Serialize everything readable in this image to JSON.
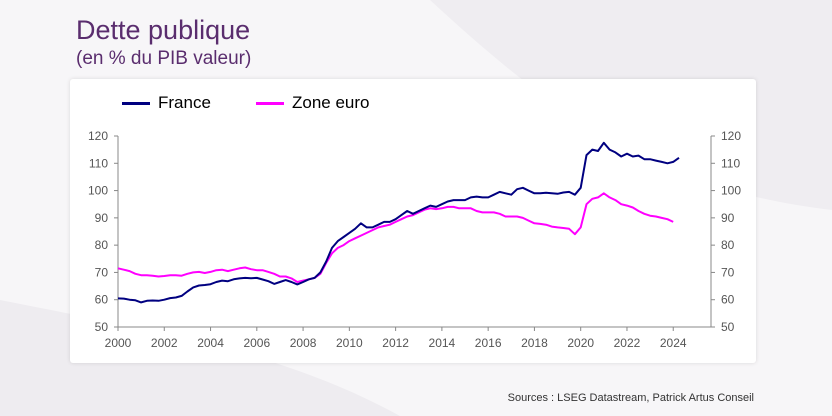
{
  "title": "Dette publique",
  "subtitle": "(en % du PIB valeur)",
  "source": "Sources : LSEG Datastream, Patrick Artus Conseil",
  "chart_data": {
    "type": "line",
    "xlim": [
      2000,
      2025.2
    ],
    "ylim": [
      50,
      120
    ],
    "y_ticks": [
      50,
      60,
      70,
      80,
      90,
      100,
      110,
      120
    ],
    "x_ticks": [
      2000,
      2002,
      2004,
      2006,
      2008,
      2010,
      2012,
      2014,
      2016,
      2018,
      2020,
      2022,
      2024
    ],
    "y_tick_labels": [
      "50",
      "60",
      "70",
      "80",
      "90",
      "100",
      "110",
      "120"
    ],
    "x_tick_labels": [
      "2000",
      "2002",
      "2004",
      "2006",
      "2008",
      "2010",
      "2012",
      "2014",
      "2016",
      "2018",
      "2020",
      "2022",
      "2024"
    ],
    "legend_position": "top-left",
    "grid": false,
    "series": [
      {
        "name": "France",
        "color": "#000080",
        "points": [
          [
            2000.0,
            60.5
          ],
          [
            2000.25,
            60.4
          ],
          [
            2000.5,
            60.0
          ],
          [
            2000.75,
            59.8
          ],
          [
            2001.0,
            59.0
          ],
          [
            2001.25,
            59.6
          ],
          [
            2001.5,
            59.7
          ],
          [
            2001.75,
            59.6
          ],
          [
            2002.0,
            60.0
          ],
          [
            2002.25,
            60.6
          ],
          [
            2002.5,
            60.8
          ],
          [
            2002.75,
            61.4
          ],
          [
            2003.0,
            63.0
          ],
          [
            2003.25,
            64.5
          ],
          [
            2003.5,
            65.2
          ],
          [
            2003.75,
            65.4
          ],
          [
            2004.0,
            65.7
          ],
          [
            2004.25,
            66.5
          ],
          [
            2004.5,
            67.0
          ],
          [
            2004.75,
            66.8
          ],
          [
            2005.0,
            67.5
          ],
          [
            2005.25,
            67.8
          ],
          [
            2005.5,
            68.0
          ],
          [
            2005.75,
            67.9
          ],
          [
            2006.0,
            68.0
          ],
          [
            2006.25,
            67.4
          ],
          [
            2006.5,
            66.8
          ],
          [
            2006.75,
            65.8
          ],
          [
            2007.0,
            66.5
          ],
          [
            2007.25,
            67.2
          ],
          [
            2007.5,
            66.5
          ],
          [
            2007.75,
            65.6
          ],
          [
            2008.0,
            66.5
          ],
          [
            2008.25,
            67.5
          ],
          [
            2008.5,
            68.0
          ],
          [
            2008.75,
            70.0
          ],
          [
            2009.0,
            74.0
          ],
          [
            2009.25,
            79.0
          ],
          [
            2009.5,
            81.5
          ],
          [
            2009.75,
            83.0
          ],
          [
            2010.0,
            84.5
          ],
          [
            2010.25,
            86.0
          ],
          [
            2010.5,
            88.0
          ],
          [
            2010.75,
            86.5
          ],
          [
            2011.0,
            86.5
          ],
          [
            2011.25,
            87.5
          ],
          [
            2011.5,
            88.5
          ],
          [
            2011.75,
            88.5
          ],
          [
            2012.0,
            89.5
          ],
          [
            2012.25,
            91.0
          ],
          [
            2012.5,
            92.5
          ],
          [
            2012.75,
            91.5
          ],
          [
            2013.0,
            92.5
          ],
          [
            2013.25,
            93.5
          ],
          [
            2013.5,
            94.5
          ],
          [
            2013.75,
            94.0
          ],
          [
            2014.0,
            95.0
          ],
          [
            2014.25,
            96.0
          ],
          [
            2014.5,
            96.5
          ],
          [
            2014.75,
            96.5
          ],
          [
            2015.0,
            96.5
          ],
          [
            2015.25,
            97.5
          ],
          [
            2015.5,
            97.8
          ],
          [
            2015.75,
            97.5
          ],
          [
            2016.0,
            97.5
          ],
          [
            2016.25,
            98.5
          ],
          [
            2016.5,
            99.5
          ],
          [
            2016.75,
            99.0
          ],
          [
            2017.0,
            98.5
          ],
          [
            2017.25,
            100.5
          ],
          [
            2017.5,
            101.0
          ],
          [
            2017.75,
            100.0
          ],
          [
            2018.0,
            99.0
          ],
          [
            2018.25,
            99.0
          ],
          [
            2018.5,
            99.2
          ],
          [
            2018.75,
            99.0
          ],
          [
            2019.0,
            98.8
          ],
          [
            2019.25,
            99.3
          ],
          [
            2019.5,
            99.5
          ],
          [
            2019.75,
            98.5
          ],
          [
            2020.0,
            101.0
          ],
          [
            2020.25,
            113.0
          ],
          [
            2020.5,
            115.0
          ],
          [
            2020.75,
            114.5
          ],
          [
            2021.0,
            117.5
          ],
          [
            2021.25,
            115.0
          ],
          [
            2021.5,
            114.0
          ],
          [
            2021.75,
            112.5
          ],
          [
            2022.0,
            113.5
          ],
          [
            2022.25,
            112.5
          ],
          [
            2022.5,
            112.8
          ],
          [
            2022.75,
            111.5
          ],
          [
            2023.0,
            111.5
          ],
          [
            2023.25,
            111.0
          ],
          [
            2023.5,
            110.5
          ],
          [
            2023.75,
            110.0
          ],
          [
            2024.0,
            110.5
          ],
          [
            2024.25,
            112.0
          ]
        ]
      },
      {
        "name": "Zone euro",
        "color": "#ff00ff",
        "points": [
          [
            2000.0,
            71.5
          ],
          [
            2000.25,
            71.0
          ],
          [
            2000.5,
            70.5
          ],
          [
            2000.75,
            69.5
          ],
          [
            2001.0,
            69.0
          ],
          [
            2001.25,
            69.0
          ],
          [
            2001.5,
            68.8
          ],
          [
            2001.75,
            68.5
          ],
          [
            2002.0,
            68.7
          ],
          [
            2002.25,
            69.0
          ],
          [
            2002.5,
            69.0
          ],
          [
            2002.75,
            68.8
          ],
          [
            2003.0,
            69.5
          ],
          [
            2003.25,
            70.0
          ],
          [
            2003.5,
            70.2
          ],
          [
            2003.75,
            69.8
          ],
          [
            2004.0,
            70.2
          ],
          [
            2004.25,
            70.8
          ],
          [
            2004.5,
            71.0
          ],
          [
            2004.75,
            70.5
          ],
          [
            2005.0,
            71.0
          ],
          [
            2005.25,
            71.5
          ],
          [
            2005.5,
            71.8
          ],
          [
            2005.75,
            71.2
          ],
          [
            2006.0,
            70.8
          ],
          [
            2006.25,
            70.8
          ],
          [
            2006.5,
            70.2
          ],
          [
            2006.75,
            69.5
          ],
          [
            2007.0,
            68.5
          ],
          [
            2007.25,
            68.5
          ],
          [
            2007.5,
            67.8
          ],
          [
            2007.75,
            66.5
          ],
          [
            2008.0,
            67.0
          ],
          [
            2008.25,
            67.5
          ],
          [
            2008.5,
            68.0
          ],
          [
            2008.75,
            69.5
          ],
          [
            2009.0,
            73.5
          ],
          [
            2009.25,
            77.0
          ],
          [
            2009.5,
            79.0
          ],
          [
            2009.75,
            80.0
          ],
          [
            2010.0,
            81.5
          ],
          [
            2010.25,
            82.5
          ],
          [
            2010.5,
            83.5
          ],
          [
            2010.75,
            84.5
          ],
          [
            2011.0,
            85.5
          ],
          [
            2011.25,
            86.5
          ],
          [
            2011.5,
            87.0
          ],
          [
            2011.75,
            87.5
          ],
          [
            2012.0,
            88.5
          ],
          [
            2012.25,
            89.5
          ],
          [
            2012.5,
            90.5
          ],
          [
            2012.75,
            91.0
          ],
          [
            2013.0,
            92.0
          ],
          [
            2013.25,
            93.0
          ],
          [
            2013.5,
            93.5
          ],
          [
            2013.75,
            93.2
          ],
          [
            2014.0,
            93.5
          ],
          [
            2014.25,
            94.0
          ],
          [
            2014.5,
            94.0
          ],
          [
            2014.75,
            93.5
          ],
          [
            2015.0,
            93.5
          ],
          [
            2015.25,
            93.5
          ],
          [
            2015.5,
            92.5
          ],
          [
            2015.75,
            92.0
          ],
          [
            2016.0,
            92.0
          ],
          [
            2016.25,
            92.0
          ],
          [
            2016.5,
            91.5
          ],
          [
            2016.75,
            90.5
          ],
          [
            2017.0,
            90.5
          ],
          [
            2017.25,
            90.5
          ],
          [
            2017.5,
            90.0
          ],
          [
            2017.75,
            89.0
          ],
          [
            2018.0,
            88.0
          ],
          [
            2018.25,
            87.8
          ],
          [
            2018.5,
            87.5
          ],
          [
            2018.75,
            86.8
          ],
          [
            2019.0,
            86.5
          ],
          [
            2019.25,
            86.3
          ],
          [
            2019.5,
            86.0
          ],
          [
            2019.75,
            84.0
          ],
          [
            2020.0,
            86.5
          ],
          [
            2020.25,
            95.0
          ],
          [
            2020.5,
            97.0
          ],
          [
            2020.75,
            97.5
          ],
          [
            2021.0,
            99.0
          ],
          [
            2021.25,
            97.5
          ],
          [
            2021.5,
            96.5
          ],
          [
            2021.75,
            95.0
          ],
          [
            2022.0,
            94.5
          ],
          [
            2022.25,
            93.8
          ],
          [
            2022.5,
            92.5
          ],
          [
            2022.75,
            91.5
          ],
          [
            2023.0,
            90.8
          ],
          [
            2023.25,
            90.5
          ],
          [
            2023.5,
            90.0
          ],
          [
            2023.75,
            89.5
          ],
          [
            2024.0,
            88.5
          ]
        ]
      }
    ]
  }
}
